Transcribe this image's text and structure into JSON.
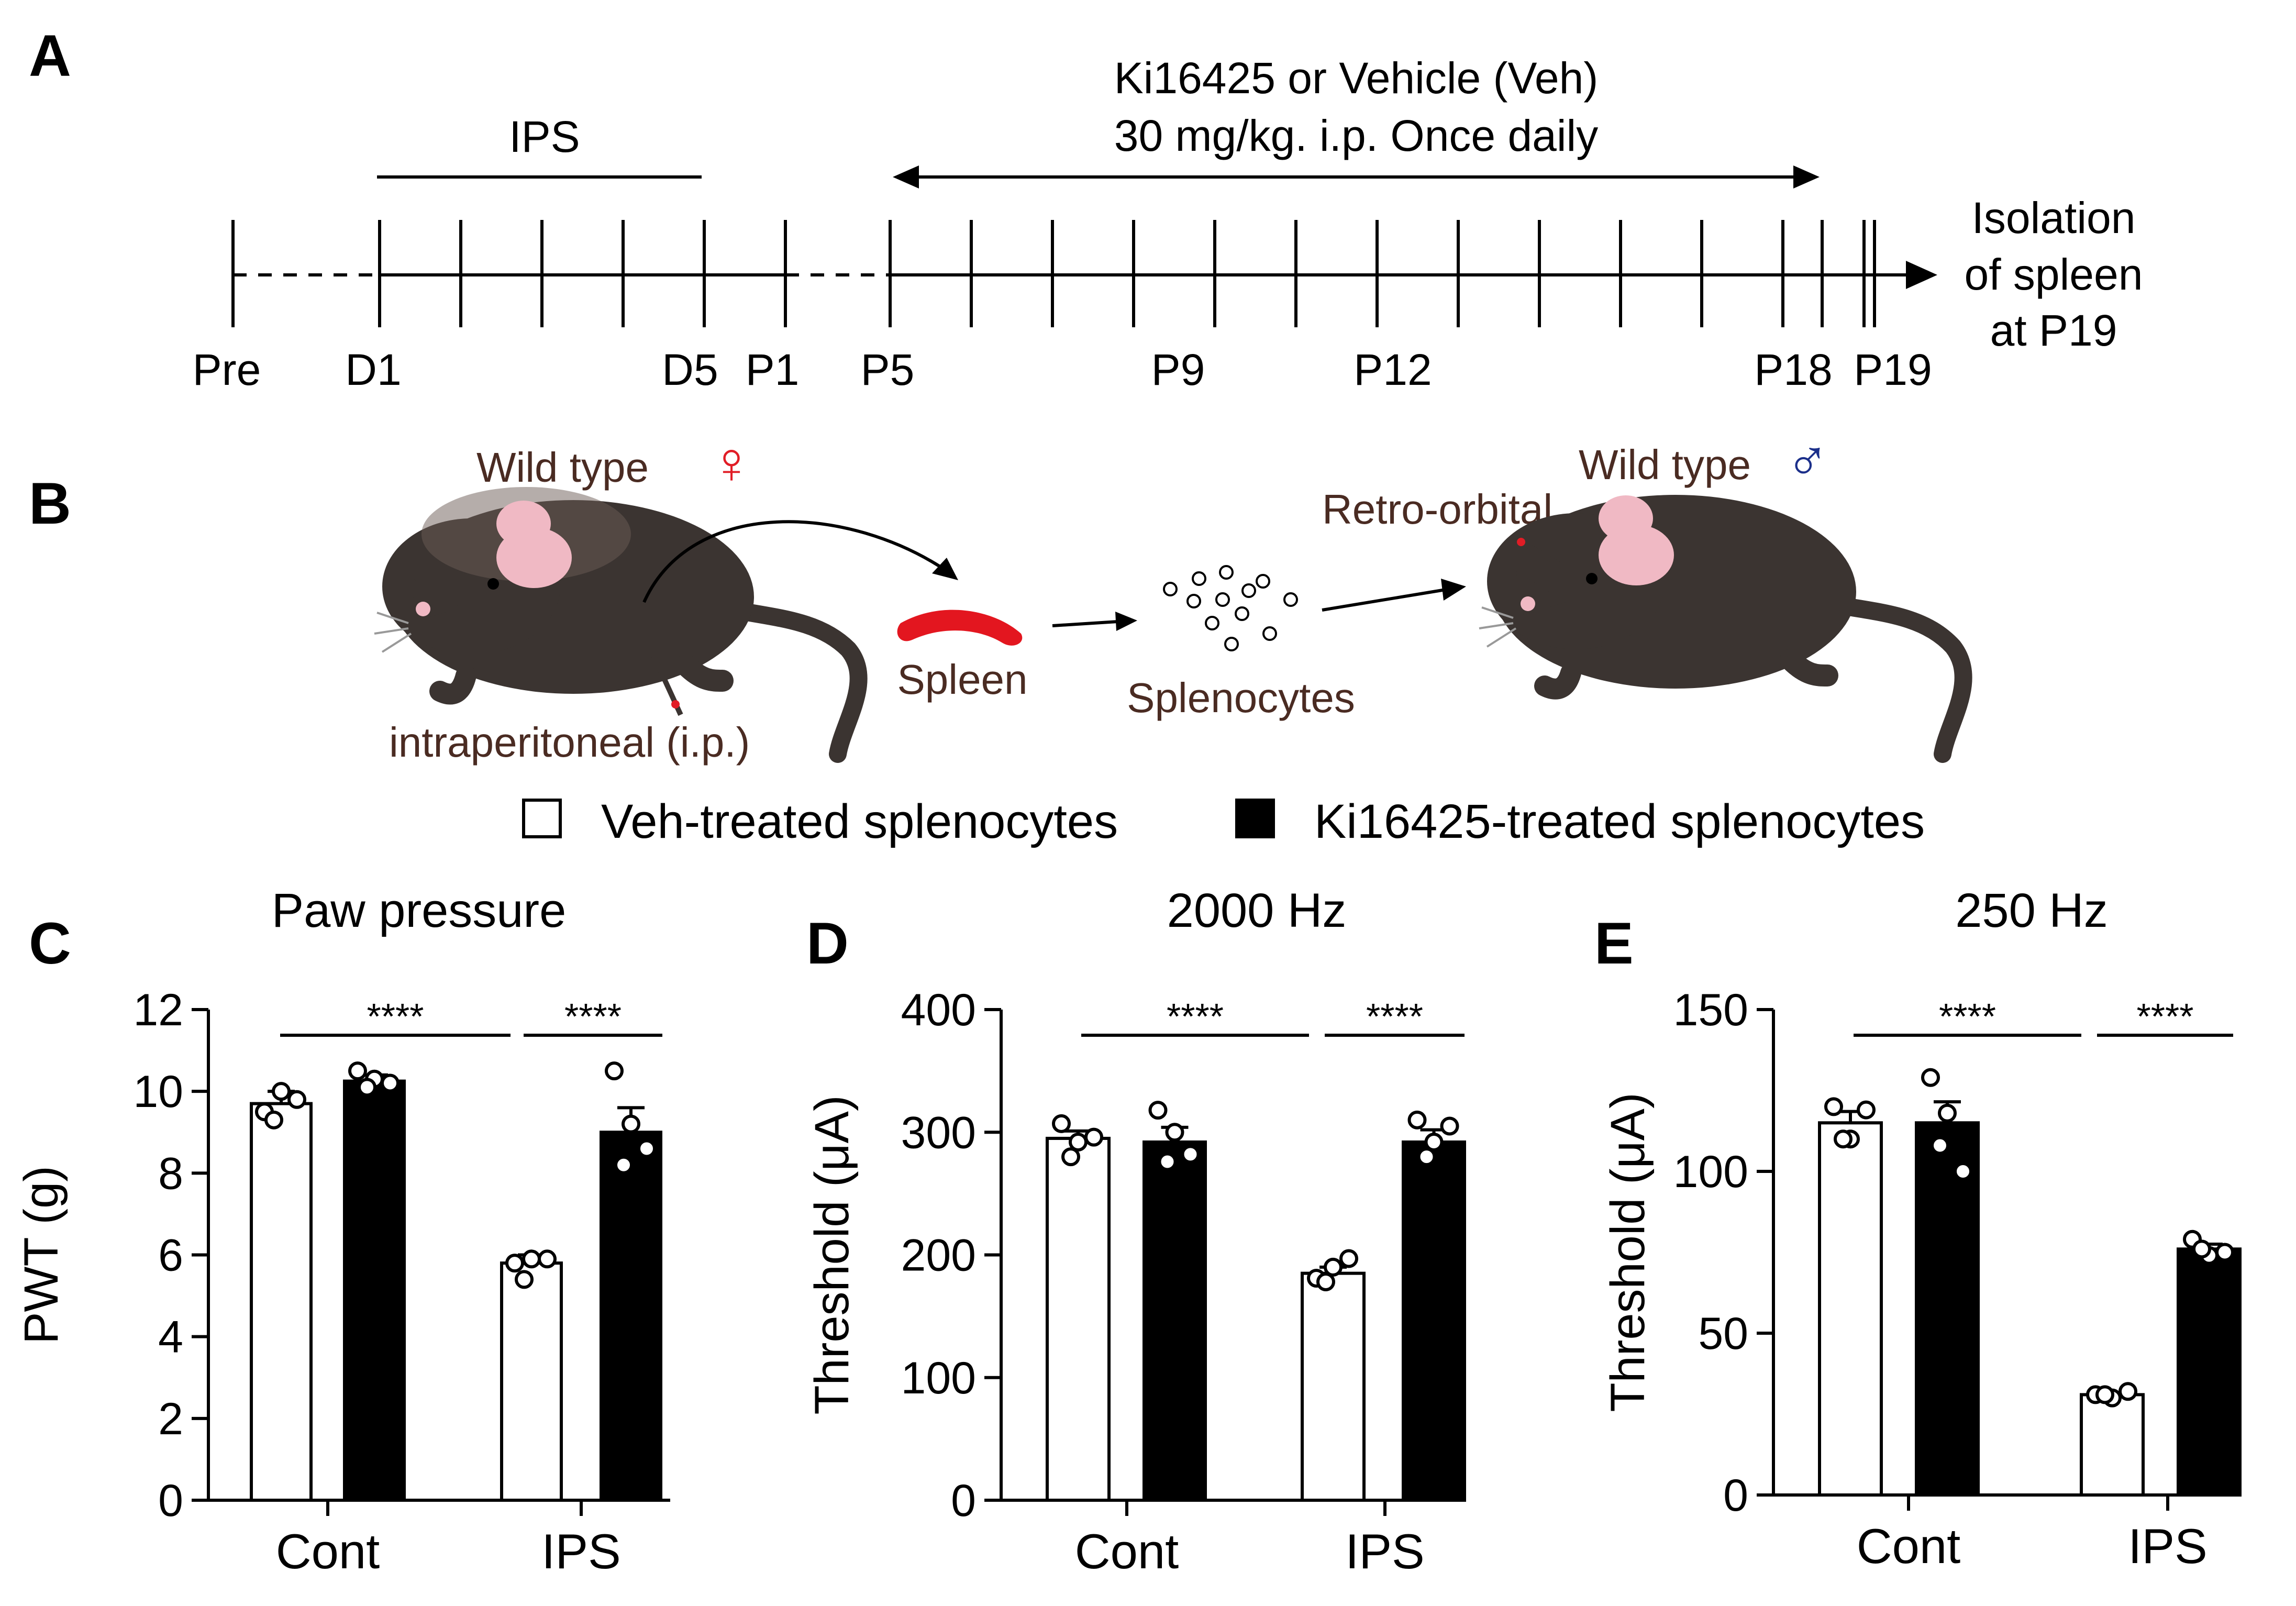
{
  "panel_labels": {
    "A": "A",
    "B": "B",
    "C": "C",
    "D": "D",
    "E": "E"
  },
  "timeline": {
    "ips_label": "IPS",
    "treatment_line1": "Ki16425 or Vehicle (Veh)",
    "treatment_line2": "30 mg/kg. i.p. Once daily",
    "end_line1": "Isolation",
    "end_line2": "of spleen",
    "end_line3": "at P19",
    "ticks": [
      "Pre",
      "D1",
      "D5",
      "P1",
      "P5",
      "P9",
      "P12",
      "P18",
      "P19"
    ]
  },
  "schematic": {
    "donor": "Wild type",
    "donor_symbol": "♀",
    "recipient": "Wild type",
    "recipient_symbol": "♂",
    "route_ip": "intraperitoneal (i.p.)",
    "spleen": "Spleen",
    "splenocytes": "Splenocytes",
    "route_ro": "Retro-orbital",
    "female_color": "#e11d26",
    "male_color": "#1b2f8a",
    "spleen_color": "#e3161f",
    "mouse_color": "#3b3431"
  },
  "legend": {
    "veh": "Veh-treated splenocytes",
    "ki": "Ki16425-treated splenocytes"
  },
  "chart_data": [
    {
      "type": "bar",
      "panel": "C",
      "title": "Paw pressure",
      "ylabel": "PWT (g)",
      "categories": [
        "Cont",
        "IPS"
      ],
      "ylim": [
        0,
        12
      ],
      "yticks": [
        "0",
        "2",
        "4",
        "6",
        "8",
        "10",
        "12"
      ],
      "series": [
        {
          "name": "Veh-treated splenocytes",
          "values": [
            9.7,
            5.8
          ],
          "sem": [
            0.3,
            0.2
          ],
          "points": [
            [
              9.5,
              10.0,
              9.3,
              9.8
            ],
            [
              5.8,
              5.9,
              5.4,
              5.9
            ]
          ]
        },
        {
          "name": "Ki16425-treated splenocytes",
          "values": [
            10.25,
            9.0
          ],
          "sem": [
            0.15,
            0.6
          ],
          "points": [
            [
              10.5,
              10.3,
              10.1,
              10.2
            ],
            [
              10.5,
              9.2,
              8.2,
              8.6
            ]
          ]
        }
      ],
      "significance": [
        "****",
        "****"
      ]
    },
    {
      "type": "bar",
      "panel": "D",
      "title": "2000 Hz",
      "ylabel": "Threshold (μA)",
      "categories": [
        "Cont",
        "IPS"
      ],
      "ylim": [
        0,
        400
      ],
      "yticks": [
        "0",
        "100",
        "200",
        "300",
        "400"
      ],
      "series": [
        {
          "name": "Veh-treated splenocytes",
          "values": [
            295,
            185
          ],
          "sem": [
            6,
            5
          ],
          "points": [
            [
              307,
              292,
              280,
              296
            ],
            [
              181,
              190,
              178,
              197
            ]
          ]
        },
        {
          "name": "Ki16425-treated splenocytes",
          "values": [
            292,
            292
          ],
          "sem": [
            12,
            10
          ],
          "points": [
            [
              318,
              300,
              276,
              282
            ],
            [
              310,
              292,
              280,
              305
            ]
          ]
        }
      ],
      "significance": [
        "****",
        "****"
      ]
    },
    {
      "type": "bar",
      "panel": "E",
      "title": "250 Hz",
      "ylabel": "Threshold (μA)",
      "categories": [
        "Cont",
        "IPS"
      ],
      "ylim": [
        0,
        150
      ],
      "yticks": [
        "0",
        "50",
        "100",
        "150"
      ],
      "series": [
        {
          "name": "Veh-treated splenocytes",
          "values": [
            115,
            31
          ],
          "sem": [
            3.5,
            0.5
          ],
          "points": [
            [
              120,
              110,
              110,
              119
            ],
            [
              31,
              30,
              31,
              32
            ]
          ]
        },
        {
          "name": "Ki16425-treated splenocytes",
          "values": [
            115,
            76
          ],
          "sem": [
            6.5,
            1.5
          ],
          "points": [
            [
              129,
              118,
              108,
              100
            ],
            [
              79,
              74,
              76,
              75
            ]
          ]
        }
      ],
      "significance": [
        "****",
        "****"
      ]
    }
  ]
}
